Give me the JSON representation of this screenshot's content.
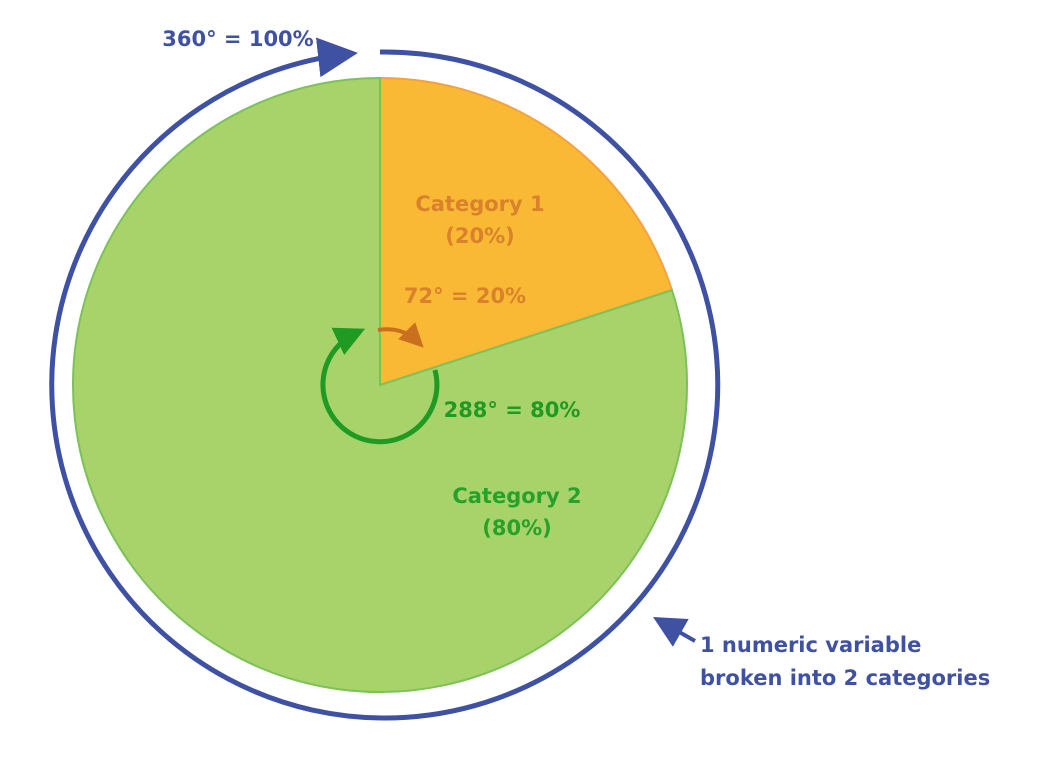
{
  "chart_data": {
    "type": "pie",
    "categories": [
      "Category 1",
      "Category 2"
    ],
    "values": [
      20,
      80
    ],
    "value_labels": [
      "(20%)",
      "(80%)"
    ],
    "colors": [
      "#f9b934",
      "#a8d26a"
    ],
    "stroke_colors": [
      "#f5a23c",
      "#7cc15a"
    ],
    "label_colors": [
      "#d9822b",
      "#27a12a"
    ],
    "annotations": {
      "total": "360° = 100%",
      "slice_1": "72° = 20%",
      "slice_2": "288° = 80%",
      "note": [
        "1 numeric variable",
        "broken into 2 categories"
      ]
    }
  }
}
